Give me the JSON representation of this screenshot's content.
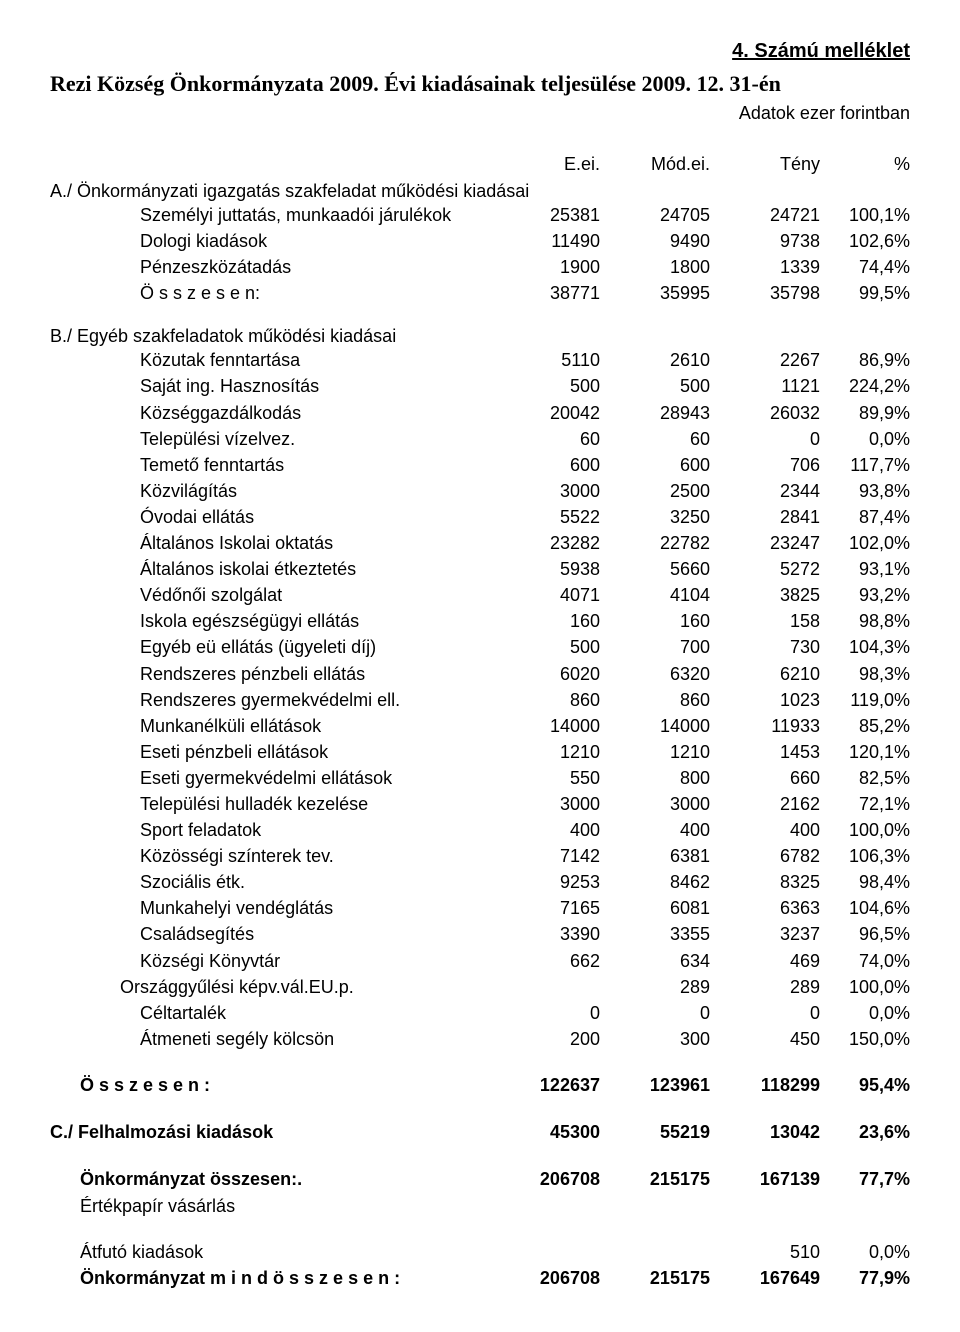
{
  "attachment": "4. Számú melléklet",
  "title": "Rezi Község Önkormányzata 2009. Évi kiadásainak teljesülése 2009. 12. 31-én",
  "subtitle": "Adatok ezer forintban",
  "headers": {
    "c1": "E.ei.",
    "c2": "Mód.ei.",
    "c3": "Tény",
    "c4": "%"
  },
  "sectionA": {
    "label": "A./ Önkormányzati igazgatás szakfeladat működési kiadásai",
    "rows": [
      {
        "label": "Személyi juttatás, munkaadói járulékok",
        "c1": "25381",
        "c2": "24705",
        "c3": "24721",
        "c4": "100,1%"
      },
      {
        "label": "Dologi kiadások",
        "c1": "11490",
        "c2": "9490",
        "c3": "9738",
        "c4": "102,6%"
      },
      {
        "label": "Pénzeszközátadás",
        "c1": "1900",
        "c2": "1800",
        "c3": "1339",
        "c4": "74,4%"
      },
      {
        "label": "Ö s s z e s e n:",
        "c1": "38771",
        "c2": "35995",
        "c3": "35798",
        "c4": "99,5%"
      }
    ]
  },
  "sectionB": {
    "label": "B./  Egyéb szakfeladatok működési kiadásai",
    "rows": [
      {
        "label": "Közutak fenntartása",
        "c1": "5110",
        "c2": "2610",
        "c3": "2267",
        "c4": "86,9%"
      },
      {
        "label": "Saját ing. Hasznosítás",
        "c1": "500",
        "c2": "500",
        "c3": "1121",
        "c4": "224,2%"
      },
      {
        "label": "Községgazdálkodás",
        "c1": "20042",
        "c2": "28943",
        "c3": "26032",
        "c4": "89,9%"
      },
      {
        "label": "Települési vízelvez.",
        "c1": "60",
        "c2": "60",
        "c3": "0",
        "c4": "0,0%"
      },
      {
        "label": "Temető fenntartás",
        "c1": "600",
        "c2": "600",
        "c3": "706",
        "c4": "117,7%"
      },
      {
        "label": "Közvilágítás",
        "c1": "3000",
        "c2": "2500",
        "c3": "2344",
        "c4": "93,8%"
      },
      {
        "label": "Óvodai ellátás",
        "c1": "5522",
        "c2": "3250",
        "c3": "2841",
        "c4": "87,4%"
      },
      {
        "label": "Általános Iskolai oktatás",
        "c1": "23282",
        "c2": "22782",
        "c3": "23247",
        "c4": "102,0%"
      },
      {
        "label": "Általános iskolai étkeztetés",
        "c1": "5938",
        "c2": "5660",
        "c3": "5272",
        "c4": "93,1%"
      },
      {
        "label": "Védőnői szolgálat",
        "c1": "4071",
        "c2": "4104",
        "c3": "3825",
        "c4": "93,2%"
      },
      {
        "label": "Iskola egészségügyi ellátás",
        "c1": "160",
        "c2": "160",
        "c3": "158",
        "c4": "98,8%"
      },
      {
        "label": "Egyéb eü ellátás (ügyeleti díj)",
        "c1": "500",
        "c2": "700",
        "c3": "730",
        "c4": "104,3%"
      },
      {
        "label": "Rendszeres pénzbeli ellátás",
        "c1": "6020",
        "c2": "6320",
        "c3": "6210",
        "c4": "98,3%"
      },
      {
        "label": "Rendszeres gyermekvédelmi ell.",
        "c1": "860",
        "c2": "860",
        "c3": "1023",
        "c4": "119,0%"
      },
      {
        "label": "Munkanélküli ellátások",
        "c1": "14000",
        "c2": "14000",
        "c3": "11933",
        "c4": "85,2%"
      },
      {
        "label": "Eseti pénzbeli ellátások",
        "c1": "1210",
        "c2": "1210",
        "c3": "1453",
        "c4": "120,1%"
      },
      {
        "label": "Eseti gyermekvédelmi ellátások",
        "c1": "550",
        "c2": "800",
        "c3": "660",
        "c4": "82,5%"
      },
      {
        "label": "Települési hulladék kezelése",
        "c1": "3000",
        "c2": "3000",
        "c3": "2162",
        "c4": "72,1%"
      },
      {
        "label": "Sport feladatok",
        "c1": "400",
        "c2": "400",
        "c3": "400",
        "c4": "100,0%"
      },
      {
        "label": "Közösségi színterek tev.",
        "c1": "7142",
        "c2": "6381",
        "c3": "6782",
        "c4": "106,3%"
      },
      {
        "label": "Szociális étk.",
        "c1": "9253",
        "c2": "8462",
        "c3": "8325",
        "c4": "98,4%"
      },
      {
        "label": "Munkahelyi vendéglátás",
        "c1": "7165",
        "c2": "6081",
        "c3": "6363",
        "c4": "104,6%"
      },
      {
        "label": "Családsegítés",
        "c1": "3390",
        "c2": "3355",
        "c3": "3237",
        "c4": "96,5%"
      },
      {
        "label": "Községi Könyvtár",
        "c1": "662",
        "c2": "634",
        "c3": "469",
        "c4": "74,0%"
      },
      {
        "label": "Országgyűlési képv.vál.EU.p.",
        "c1": "",
        "c2": "289",
        "c3": "289",
        "c4": "100,0%",
        "indent": 70
      },
      {
        "label": "Céltartalék",
        "c1": "0",
        "c2": "0",
        "c3": "0",
        "c4": "0,0%"
      },
      {
        "label": "Átmeneti segély kölcsön",
        "c1": "200",
        "c2": "300",
        "c3": "450",
        "c4": "150,0%"
      }
    ]
  },
  "sumB": {
    "label": "Ö s s z e s e n :",
    "c1": "122637",
    "c2": "123961",
    "c3": "118299",
    "c4": "95,4%"
  },
  "sectionC": {
    "label": "C./  Felhalmozási kiadások",
    "c1": "45300",
    "c2": "55219",
    "c3": "13042",
    "c4": "23,6%"
  },
  "onkTotal": {
    "label": "Önkormányzat összesen:.",
    "c1": "206708",
    "c2": "215175",
    "c3": "167139",
    "c4": "77,7%"
  },
  "ertekpapir": {
    "label": "Értékpapír vásárlás"
  },
  "atfuto": {
    "label": "Átfutó kiadások",
    "c3": "510",
    "c4": "0,0%"
  },
  "mindTotal": {
    "label": "Önkormányzat m i n d ö s s z e s e n :",
    "c1": "206708",
    "c2": "215175",
    "c3": "167649",
    "c4": "77,9%"
  }
}
